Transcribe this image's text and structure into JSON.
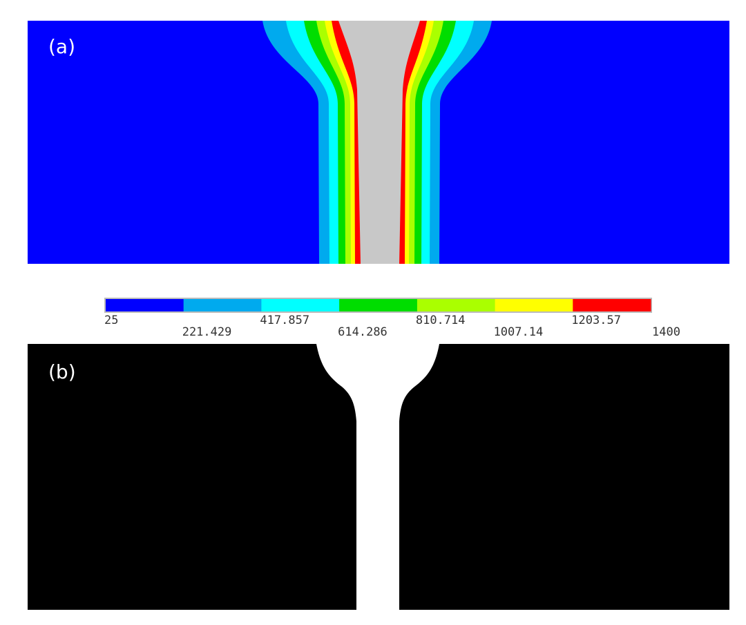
{
  "panels": {
    "a": {
      "label": "(a)"
    },
    "b": {
      "label": "(b)"
    }
  },
  "colors": {
    "background_a": "#0000ff",
    "core": "#c8c8c8",
    "background_b": "#000000",
    "channel_b": "#ffffff"
  },
  "legend": {
    "colors": [
      "#0000ff",
      "#00aaee",
      "#00ffff",
      "#00dd00",
      "#aaff00",
      "#ffff00",
      "#ff0000"
    ],
    "tick_labels": [
      "25",
      "221.429",
      "417.857",
      "614.286",
      "810.714",
      "1007.14",
      "1203.57",
      "1400"
    ]
  }
}
